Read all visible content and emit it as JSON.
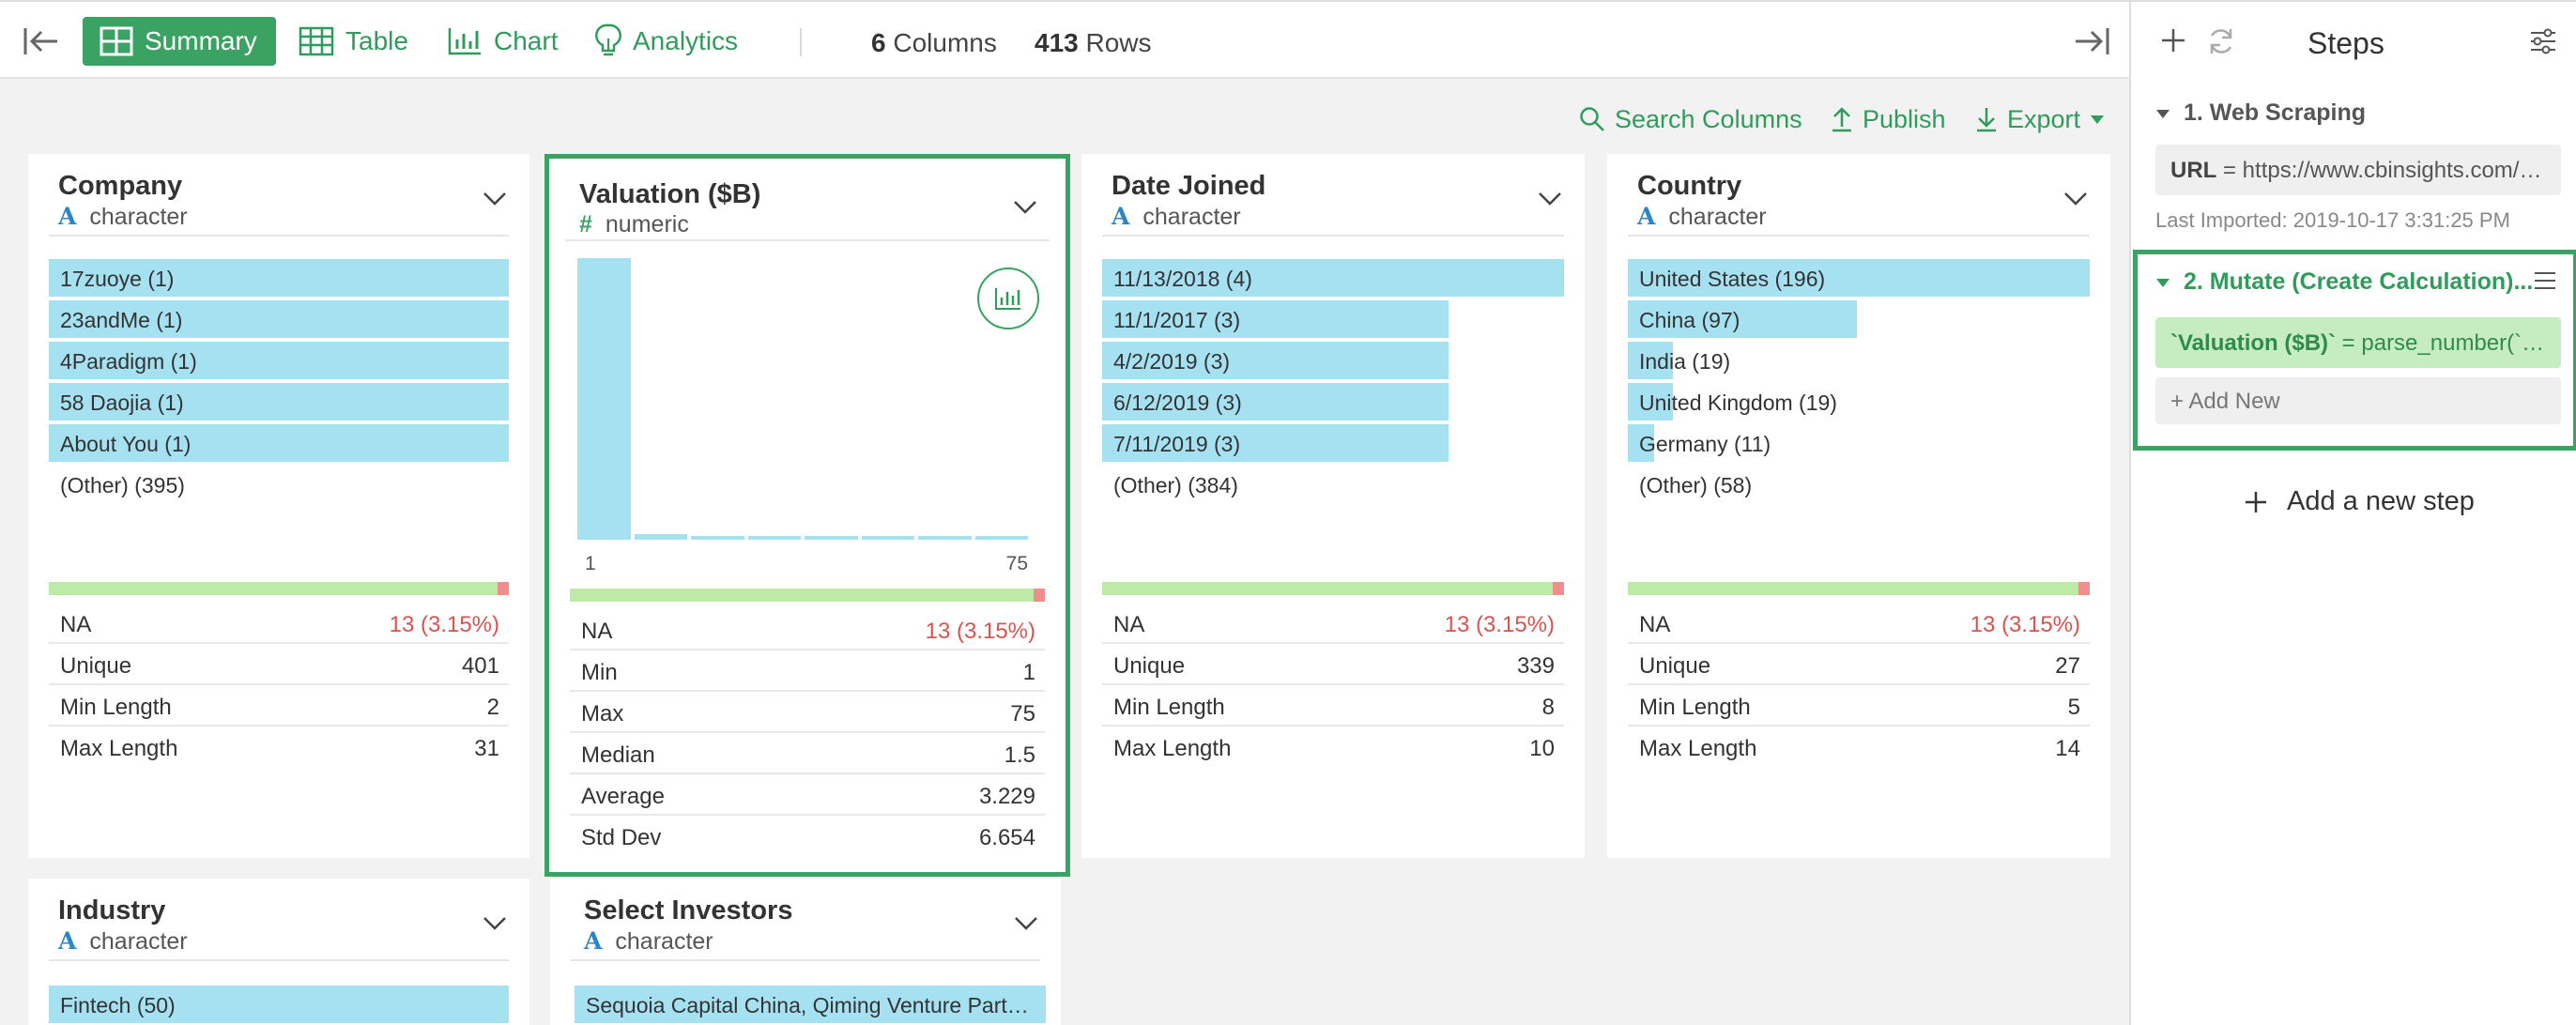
{
  "toolbar": {
    "views": [
      "Summary",
      "Table",
      "Chart",
      "Analytics"
    ],
    "columns_count": "6",
    "columns_label": "Columns",
    "rows_count": "413",
    "rows_label": "Rows"
  },
  "actions": {
    "search": "Search Columns",
    "publish": "Publish",
    "export": "Export"
  },
  "colors": {
    "accent": "#3aa262",
    "bar": "#a6e1f2",
    "na": "#d9534f",
    "quality_ok": "#bdeaa6",
    "quality_na": "#f08d8d"
  },
  "cards": {
    "company": {
      "title": "Company",
      "type": "character",
      "bars": [
        {
          "label": "17zuoye (1)",
          "frac": 1
        },
        {
          "label": "23andMe (1)",
          "frac": 1
        },
        {
          "label": "4Paradigm (1)",
          "frac": 1
        },
        {
          "label": "58 Daojia (1)",
          "frac": 1
        },
        {
          "label": "About You (1)",
          "frac": 1
        },
        {
          "label": "(Other) (395)",
          "frac": 0
        }
      ],
      "stats": [
        {
          "label": "NA",
          "value": "13 (3.15%)"
        },
        {
          "label": "Unique",
          "value": "401"
        },
        {
          "label": "Min Length",
          "value": "2"
        },
        {
          "label": "Max Length",
          "value": "31"
        }
      ]
    },
    "valuation": {
      "title": "Valuation ($B)",
      "type": "numeric",
      "hist": [
        1,
        0.02,
        0.006,
        0.006,
        0.006,
        0.006,
        0.006,
        0.006
      ],
      "axis_min": "1",
      "axis_max": "75",
      "stats": [
        {
          "label": "NA",
          "value": "13 (3.15%)"
        },
        {
          "label": "Min",
          "value": "1"
        },
        {
          "label": "Max",
          "value": "75"
        },
        {
          "label": "Median",
          "value": "1.5"
        },
        {
          "label": "Average",
          "value": "3.229"
        },
        {
          "label": "Std Dev",
          "value": "6.654"
        }
      ]
    },
    "date_joined": {
      "title": "Date Joined",
      "type": "character",
      "bars": [
        {
          "label": "11/13/2018 (4)",
          "frac": 1
        },
        {
          "label": "11/1/2017 (3)",
          "frac": 0.75
        },
        {
          "label": "4/2/2019 (3)",
          "frac": 0.75
        },
        {
          "label": "6/12/2019 (3)",
          "frac": 0.75
        },
        {
          "label": "7/11/2019 (3)",
          "frac": 0.75
        },
        {
          "label": "(Other) (384)",
          "frac": 0
        }
      ],
      "stats": [
        {
          "label": "NA",
          "value": "13 (3.15%)"
        },
        {
          "label": "Unique",
          "value": "339"
        },
        {
          "label": "Min Length",
          "value": "8"
        },
        {
          "label": "Max Length",
          "value": "10"
        }
      ]
    },
    "country": {
      "title": "Country",
      "type": "character",
      "bars": [
        {
          "label": "United States (196)",
          "frac": 1
        },
        {
          "label": "China (97)",
          "frac": 0.495
        },
        {
          "label": "India (19)",
          "frac": 0.097
        },
        {
          "label": "United Kingdom (19)",
          "frac": 0.097
        },
        {
          "label": "Germany (11)",
          "frac": 0.056
        },
        {
          "label": "(Other) (58)",
          "frac": 0
        }
      ],
      "stats": [
        {
          "label": "NA",
          "value": "13 (3.15%)"
        },
        {
          "label": "Unique",
          "value": "27"
        },
        {
          "label": "Min Length",
          "value": "5"
        },
        {
          "label": "Max Length",
          "value": "14"
        }
      ]
    },
    "industry": {
      "title": "Industry",
      "type": "character",
      "bars": [
        {
          "label": "Fintech (50)",
          "frac": 1
        }
      ]
    },
    "investors": {
      "title": "Select Investors",
      "type": "character",
      "bars": [
        {
          "label": "Sequoia Capital China, Qiming Venture Partners...",
          "frac": 1
        }
      ]
    }
  },
  "steps": {
    "title": "Steps",
    "items": [
      {
        "name": "1. Web Scraping",
        "box_key": "URL",
        "box_value": " = https://www.cbinsights.com/research-unicorn-companies",
        "meta": "Last Imported: 2019-10-17 3:31:25 PM"
      },
      {
        "name": "2. Mutate (Create Calculation)...",
        "box_key": "`Valuation ($B)`",
        "box_value": " = parse_number(`Valuation ($B)`)",
        "add_new": "Add New"
      }
    ],
    "add_step": "Add a new step"
  }
}
